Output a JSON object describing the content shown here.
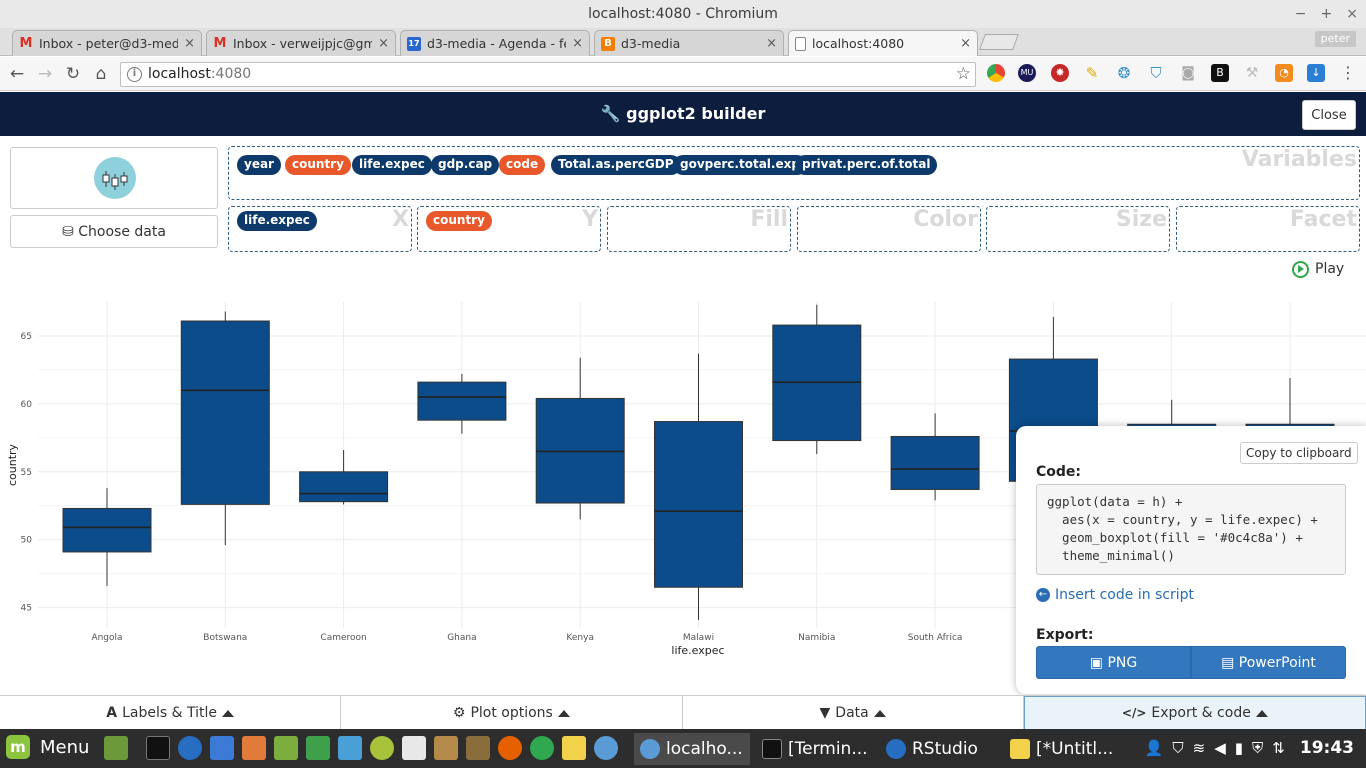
{
  "os": {
    "window_title": "localhost:4080 - Chromium",
    "min": "−",
    "max": "+",
    "close": "×"
  },
  "browser": {
    "tabs": [
      {
        "title": "Inbox - peter@d3-media",
        "icon": "gmail-icon",
        "color": "#d93025",
        "glyph": "M"
      },
      {
        "title": "Inbox - verweijpjc@gma",
        "icon": "gmail-icon",
        "color": "#d93025",
        "glyph": "M"
      },
      {
        "title": "d3-media - Agenda - feb",
        "icon": "calendar-icon",
        "color": "#2a66d0",
        "glyph": "17"
      },
      {
        "title": "d3-media",
        "icon": "blogger-icon",
        "color": "#f57d00",
        "glyph": "B"
      },
      {
        "title": "localhost:4080",
        "icon": "page-icon",
        "color": "#ffffff",
        "glyph": ""
      }
    ],
    "profile": "peter",
    "url_host": "localhost",
    "url_port": ":4080"
  },
  "app": {
    "title": "ggplot2 builder",
    "close_label": "Close",
    "choose_data_label": "Choose data",
    "variables_label": "Variables",
    "variables": [
      {
        "name": "year",
        "kind": "num"
      },
      {
        "name": "country",
        "kind": "cat"
      },
      {
        "name": "life.expec",
        "kind": "num"
      },
      {
        "name": "gdp.cap",
        "kind": "num"
      },
      {
        "name": "code",
        "kind": "cat"
      },
      {
        "name": "Total.as.percGDP",
        "kind": "num"
      },
      {
        "name": "govperc.total.exp",
        "kind": "num"
      },
      {
        "name": "privat.perc.of.total",
        "kind": "num"
      }
    ],
    "aes": {
      "x_label": "X",
      "x_value": "life.expec",
      "y_label": "Y",
      "y_value": "country",
      "fill_label": "Fill",
      "color_label": "Color",
      "size_label": "Size",
      "facet_label": "Facet"
    },
    "play_label": "Play",
    "colors": {
      "num_pill": "#0d3a6b",
      "cat_pill": "#e8582a",
      "box_fill": "#0c4c8a",
      "header_bg": "#0d1d3d"
    }
  },
  "chart_data": {
    "type": "boxplot",
    "xlabel": "life.expec",
    "ylabel": "country",
    "ylim": [
      43.5,
      67.5
    ],
    "yticks": [
      45,
      50,
      55,
      60,
      65
    ],
    "fill": "#0c4c8a",
    "categories": [
      "Angola",
      "Botswana",
      "Cameroon",
      "Ghana",
      "Kenya",
      "Malawi",
      "Namibia",
      "South Africa",
      "",
      "",
      ""
    ],
    "boxes": [
      {
        "category": "Angola",
        "min": 46.6,
        "q1": 49.1,
        "median": 50.9,
        "q3": 52.3,
        "max": 53.8
      },
      {
        "category": "Botswana",
        "min": 49.6,
        "q1": 52.6,
        "median": 61.0,
        "q3": 66.1,
        "max": 66.8
      },
      {
        "category": "Cameroon",
        "min": 52.6,
        "q1": 52.8,
        "median": 53.4,
        "q3": 55.0,
        "max": 56.6
      },
      {
        "category": "Ghana",
        "min": 57.8,
        "q1": 58.8,
        "median": 60.5,
        "q3": 61.6,
        "max": 62.2
      },
      {
        "category": "Kenya",
        "min": 51.5,
        "q1": 52.7,
        "median": 56.5,
        "q3": 60.4,
        "max": 63.4
      },
      {
        "category": "Malawi",
        "min": 44.1,
        "q1": 46.5,
        "median": 52.1,
        "q3": 58.7,
        "max": 63.7
      },
      {
        "category": "Namibia",
        "min": 56.3,
        "q1": 57.3,
        "median": 61.6,
        "q3": 65.8,
        "max": 67.3
      },
      {
        "category": "South Africa",
        "min": 52.9,
        "q1": 53.7,
        "median": 55.2,
        "q3": 57.6,
        "max": 59.3
      },
      {
        "category": "",
        "min": 54.3,
        "q1": 54.3,
        "median": 58.0,
        "q3": 63.3,
        "max": 66.4
      },
      {
        "category": "",
        "min": 56.6,
        "q1": 57.0,
        "median": 58.0,
        "q3": 58.5,
        "max": 60.3
      },
      {
        "category": "",
        "min": 56.6,
        "q1": 57.0,
        "median": 58.0,
        "q3": 58.5,
        "max": 61.9
      }
    ],
    "grid": true,
    "theme": "minimal"
  },
  "export": {
    "copy_label": "Copy to clipboard",
    "code_label": "Code:",
    "code": "ggplot(data = h) +\n  aes(x = country, y = life.expec) +\n  geom_boxplot(fill = '#0c4c8a') +\n  theme_minimal()",
    "insert_label": "Insert code in script",
    "export_label": "Export:",
    "png_label": "PNG",
    "ppt_label": "PowerPoint"
  },
  "bottom_tabs": [
    {
      "label": "Labels & Title",
      "icon": "font-icon",
      "glyph": "A"
    },
    {
      "label": "Plot options",
      "icon": "cogs-icon",
      "glyph": "⚙"
    },
    {
      "label": "Data",
      "icon": "filter-icon",
      "glyph": "▼"
    },
    {
      "label": "Export & code",
      "icon": "code-icon",
      "glyph": "</>"
    }
  ],
  "taskbar": {
    "menu_label": "Menu",
    "tasks": [
      "localho...",
      "[Termin...",
      "RStudio",
      "[*Untitl..."
    ],
    "clock": "19:43"
  }
}
